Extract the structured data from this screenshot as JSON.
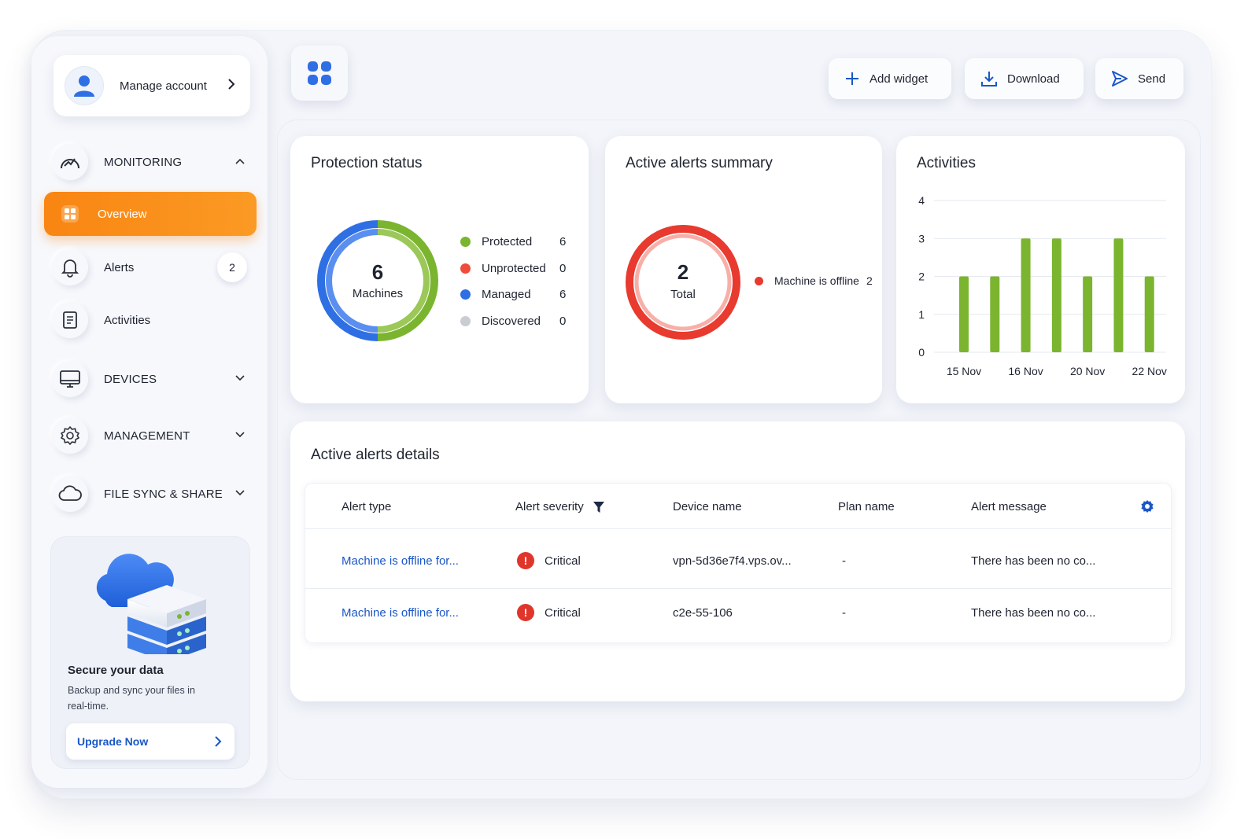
{
  "sidebar": {
    "account_label": "Manage account",
    "sections": {
      "monitoring": "MONITORING",
      "devices": "DEVICES",
      "management": "MANAGEMENT",
      "file_sync": "FILE SYNC & SHARE"
    },
    "items": {
      "overview": "Overview",
      "alerts": "Alerts",
      "alerts_badge": "2",
      "activities": "Activities"
    },
    "promo": {
      "title": "Secure your data",
      "text": "Backup and sync your files in real-time.",
      "button": "Upgrade Now"
    }
  },
  "toolbar": {
    "add_widget": "Add widget",
    "download": "Download",
    "send": "Send"
  },
  "protection": {
    "title": "Protection status",
    "center_value": "6",
    "center_label": "Machines",
    "legend": [
      {
        "label": "Protected",
        "value": "6",
        "color": "#7bb52f"
      },
      {
        "label": "Unprotected",
        "value": "0",
        "color": "#f04c3a"
      },
      {
        "label": "Managed",
        "value": "6",
        "color": "#2f6fe4"
      },
      {
        "label": "Discovered",
        "value": "0",
        "color": "#c9ccd3"
      }
    ]
  },
  "alerts_summary": {
    "title": "Active alerts summary",
    "center_value": "2",
    "center_label": "Total",
    "legend": [
      {
        "label": "Machine is offline",
        "value": "2",
        "color": "#e83a2e"
      }
    ]
  },
  "activities": {
    "title": "Activities"
  },
  "chart_data": {
    "type": "bar",
    "categories": [
      "15 Nov",
      "",
      "16 Nov",
      "",
      "20 Nov",
      "",
      "22 Nov",
      ""
    ],
    "values": [
      2,
      2,
      3,
      3,
      2,
      3,
      2,
      0
    ],
    "y_ticks": [
      "0",
      "1",
      "2",
      "3",
      "4"
    ],
    "ylim": [
      0,
      4
    ],
    "grid": true,
    "color": "#7bb52f"
  },
  "alert_details": {
    "title": "Active alerts details",
    "columns": [
      "Alert type",
      "Alert severity",
      "Device name",
      "Plan name",
      "Alert message"
    ],
    "rows": [
      {
        "type": "Machine is offline for...",
        "severity": "Critical",
        "device": "vpn-5d36e7f4.vps.ov...",
        "plan": "-",
        "message": "There has been no co..."
      },
      {
        "type": "Machine is offline for...",
        "severity": "Critical",
        "device": "c2e-55-106",
        "plan": "-",
        "message": "There has been no co..."
      }
    ]
  },
  "colors": {
    "accent": "#f98512",
    "link": "#1a56c7",
    "critical": "#e0352b"
  }
}
